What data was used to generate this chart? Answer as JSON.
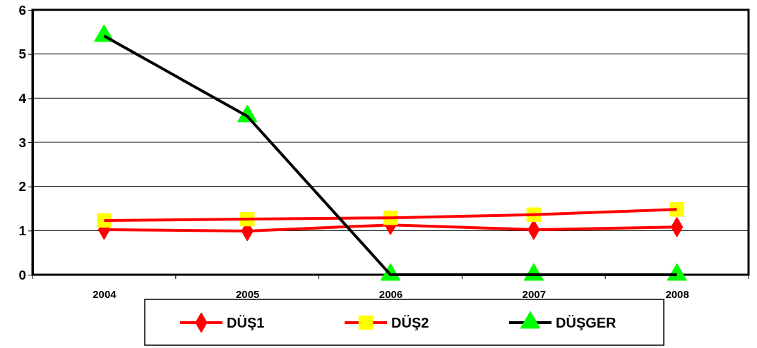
{
  "chart_data": {
    "type": "line",
    "categories": [
      "2004",
      "2005",
      "2006",
      "2007",
      "2008"
    ],
    "series": [
      {
        "name": "DÜŞ1",
        "color": "#ff0000",
        "marker": "diamond",
        "values": [
          1.02,
          0.99,
          1.13,
          1.02,
          1.08
        ]
      },
      {
        "name": "DÜŞ2",
        "color": "#ff0000",
        "marker": "square",
        "values": [
          1.23,
          1.26,
          1.29,
          1.36,
          1.48
        ]
      },
      {
        "name": "DÜŞGER",
        "color": "#000000",
        "marker": "triangle",
        "values": [
          5.41,
          3.59,
          0,
          0,
          0
        ]
      }
    ],
    "ylim": [
      0,
      6
    ],
    "yticks": [
      0,
      1,
      2,
      3,
      4,
      5,
      6
    ],
    "grid": "y",
    "legend": "bottom",
    "line_style": "solid"
  }
}
